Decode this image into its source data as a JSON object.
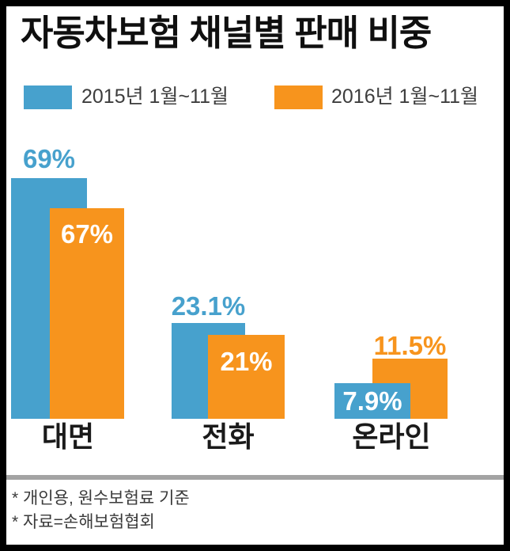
{
  "title": "자동차보험 채널별 판매 비중",
  "legend": {
    "items": [
      {
        "label": "2015년 1월~11월",
        "color": "#47a1cd"
      },
      {
        "label": "2016년 1월~11월",
        "color": "#f7941d"
      }
    ]
  },
  "chart_data": {
    "type": "bar",
    "title": "자동차보험 채널별 판매 비중",
    "categories": [
      "대면",
      "전화",
      "온라인"
    ],
    "series": [
      {
        "name": "2015년 1월~11월",
        "color": "#47a1cd",
        "values": [
          69,
          23.1,
          7.9
        ],
        "value_labels": [
          "69%",
          "23.1%",
          "7.9%"
        ]
      },
      {
        "name": "2016년 1월~11월",
        "color": "#f7941d",
        "values": [
          67,
          21,
          11.5
        ],
        "value_labels": [
          "67%",
          "21%",
          "11.5%"
        ]
      }
    ],
    "unit": "%",
    "ylim": [
      0,
      75
    ],
    "grid": false,
    "legend_position": "top",
    "xlabel": "",
    "ylabel": ""
  },
  "footnotes": [
    "* 개인용, 원수보험료 기준",
    "* 자료=손해보험협회"
  ],
  "colors": {
    "blue": "#47a1cd",
    "orange": "#f7941d",
    "title_text": "#0f0f0f",
    "legend_text": "#3d3d3d",
    "category_text": "#1a1a1a",
    "footnote_text": "#3a3a3a",
    "separator": "#a3a3a3",
    "frame": "#000000",
    "background": "#ffffff"
  }
}
